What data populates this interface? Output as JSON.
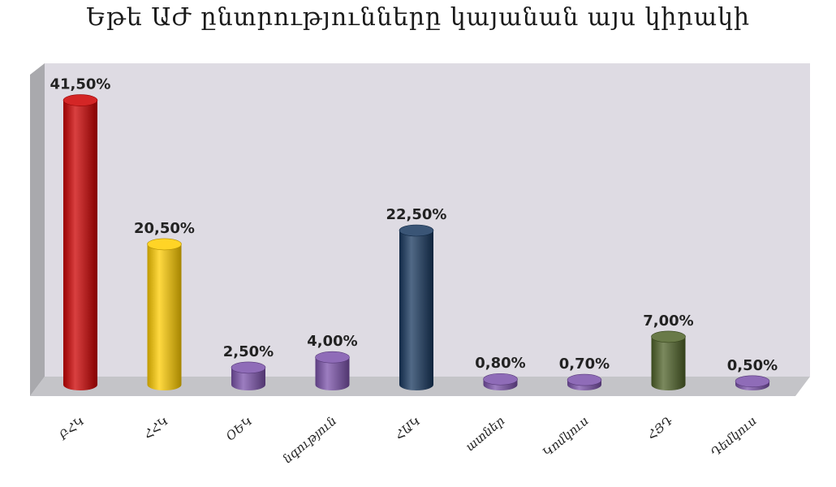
{
  "chart_data": {
    "type": "bar",
    "title": "Եթե ԱԺ ընտրությունները կայանան այս կիրակի",
    "xlabel": "",
    "ylabel": "",
    "ylim": [
      0,
      45
    ],
    "grid": false,
    "legend": "none",
    "categories": [
      "ԲՀԿ",
      "ՀՀԿ",
      "ՕԵԿ",
      "Ժառանգություն",
      "ՀԱԿ",
      "Ազատ Դեմոկրատներ",
      "Կոմկուս",
      "ՀՅԴ",
      "Դեմկուս"
    ],
    "visible_category_labels": [
      "ԲՀԿ",
      "ՀՀԿ",
      "ՕԵԿ",
      "նգություն",
      "ՀԱԿ",
      "ատներ",
      "Կոմկուս",
      "ՀՅԴ",
      "Դեմկուս"
    ],
    "values": [
      41.5,
      20.5,
      2.5,
      4.0,
      22.5,
      0.8,
      0.7,
      7.0,
      0.5
    ],
    "value_labels": [
      "41,50%",
      "20,50%",
      "2,50%",
      "4,00%",
      "22,50%",
      "0,80%",
      "0,70%",
      "7,00%",
      "0,50%"
    ],
    "colors": [
      "#cc0000",
      "#ffcc00",
      "#7b52ab",
      "#7b52ab",
      "#17375e",
      "#7b52ab",
      "#7b52ab",
      "#4f6228",
      "#7b52ab"
    ],
    "wall_colors": {
      "back": "#dedbe3",
      "side": "#a9a9ad",
      "floor": "#c4c4c8"
    }
  }
}
